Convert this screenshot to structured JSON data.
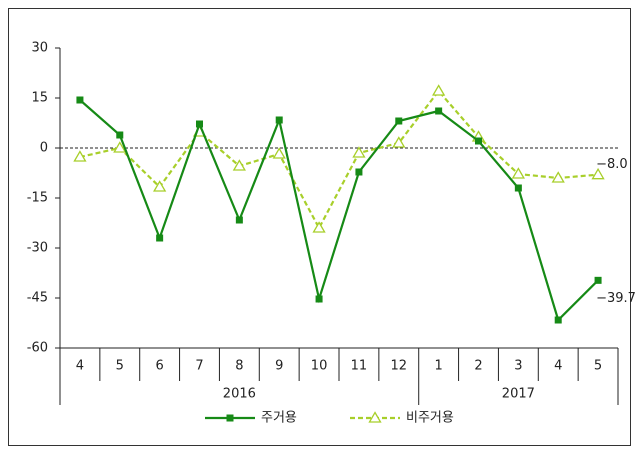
{
  "chart_data": {
    "type": "line",
    "categories": [
      "4",
      "5",
      "6",
      "7",
      "8",
      "9",
      "10",
      "11",
      "12",
      "1",
      "2",
      "3",
      "4",
      "5"
    ],
    "category_years": [
      "2016",
      "2016",
      "2016",
      "2016",
      "2016",
      "2016",
      "2016",
      "2016",
      "2016",
      "2017",
      "2017",
      "2017",
      "2017",
      "2017"
    ],
    "series": [
      {
        "name": "주거용",
        "color": "#168a16",
        "marker": "square",
        "dashed": false,
        "values": [
          14.4,
          3.9,
          -27,
          7.2,
          -21.6,
          8.4,
          -45.3,
          -7.2,
          8.1,
          11.1,
          2.1,
          -12,
          -51.6,
          -39.7
        ],
        "value_labels": [
          null,
          null,
          null,
          null,
          null,
          null,
          null,
          null,
          null,
          null,
          null,
          null,
          null,
          "−39.7"
        ]
      },
      {
        "name": "비주거용",
        "color": "#a8cf2a",
        "marker": "triangle",
        "dashed": true,
        "values": [
          -2.7,
          0,
          -11.7,
          4.8,
          -5.4,
          -1.8,
          -24,
          -1.5,
          1.5,
          17.1,
          3.3,
          -7.8,
          -9,
          -8.0
        ],
        "value_labels": [
          null,
          null,
          null,
          null,
          null,
          null,
          null,
          null,
          null,
          null,
          null,
          null,
          null,
          "−8.0"
        ]
      }
    ],
    "ylim": [
      -60,
      30
    ],
    "yticks": [
      -60,
      -45,
      -30,
      -15,
      0,
      15,
      30
    ],
    "grid": false
  }
}
